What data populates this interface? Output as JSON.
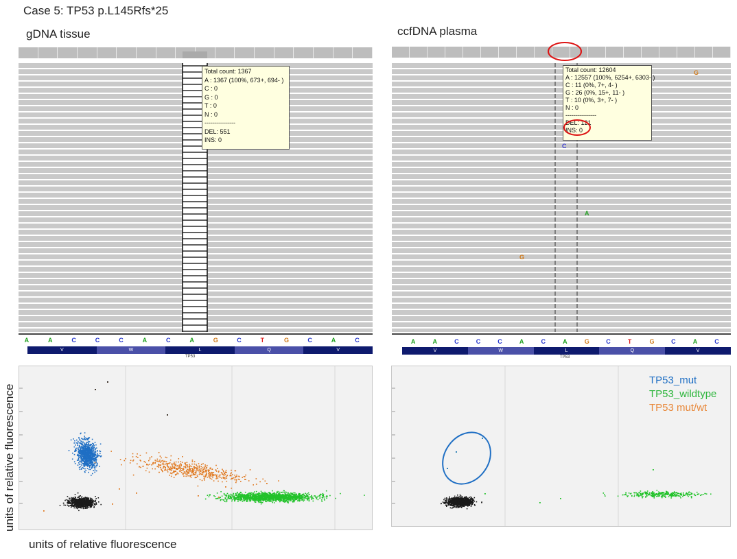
{
  "figure": {
    "title": "Case 5: TP53 p.L145Rfs*25",
    "x_axis_label": "units of relative fluorescence",
    "y_axis_label": "units of relative fluorescence"
  },
  "left_panel": {
    "title": "gDNA tissue",
    "tooltip": [
      "Total count: 1367",
      "A : 1367 (100%, 673+, 694- )",
      "C : 0",
      "G : 0",
      "T : 0",
      "N : 0",
      "---------------",
      "DEL: 551",
      "INS: 0"
    ],
    "gene_label": "TP53"
  },
  "right_panel": {
    "title": "ccfDNA plasma",
    "tooltip": [
      "Total count: 12604",
      "A : 12557 (100%, 6254+, 6303- )",
      "C : 11 (0%, 7+, 4- )",
      "G : 26 (0%, 15+, 11- )",
      "T : 10 (0%, 3+, 7- )",
      "N : 0",
      "---------------",
      "DEL: 121",
      "INS: 0"
    ],
    "mismatch_marks": [
      {
        "base": "G",
        "color": "#d07a1a"
      },
      {
        "base": "C",
        "color": "#3a3ad0"
      },
      {
        "base": "A",
        "color": "#2aa02a"
      },
      {
        "base": "G",
        "color": "#d07a1a"
      }
    ],
    "gene_label": "TP53"
  },
  "sequence": [
    "A",
    "A",
    "C",
    "C",
    "C",
    "A",
    "C",
    "A",
    "G",
    "C",
    "T",
    "G",
    "C",
    "A",
    "C"
  ],
  "base_colors": {
    "A": "#1fa01f",
    "C": "#2233cc",
    "G": "#d07a1a",
    "T": "#dd2222"
  },
  "amino_acids": [
    "V",
    "W",
    "L",
    "Q",
    "V"
  ],
  "legend": [
    {
      "label": "TP53_mut",
      "color": "#1f6fc4"
    },
    {
      "label": "TP53_wildtype",
      "color": "#2bb53a"
    },
    {
      "label": "TP53 mut/wt",
      "color": "#e8883a"
    }
  ],
  "colors": {
    "cluster_mut": "#1f6fc4",
    "cluster_wt": "#22c22a",
    "cluster_mutwt": "#e0781f",
    "cluster_neg": "#1a1a1a",
    "highlight_red": "#dd1111",
    "ellipse_blue": "#1f6fc4"
  }
}
